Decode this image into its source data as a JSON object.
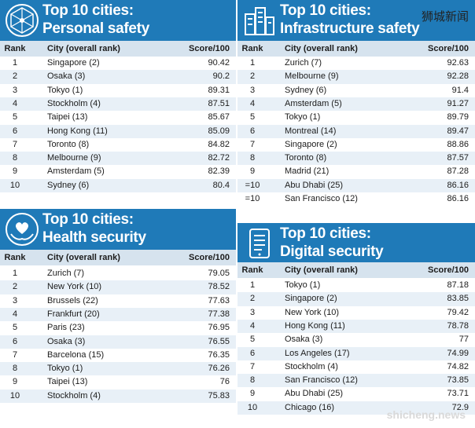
{
  "watermark_top": "狮城新闻",
  "watermark_bottom": "shicheng.news",
  "col_rank": "Rank",
  "col_city": "City (overall rank)",
  "col_score": "Score/100",
  "panels": {
    "personal": {
      "title1": "Top 10 cities:",
      "title2": "Personal safety",
      "icon": "network-icon",
      "rows": [
        {
          "rank": "1",
          "city": "Singapore (2)",
          "score": "90.42"
        },
        {
          "rank": "2",
          "city": "Osaka (3)",
          "score": "90.2"
        },
        {
          "rank": "3",
          "city": "Tokyo (1)",
          "score": "89.31"
        },
        {
          "rank": "4",
          "city": "Stockholm (4)",
          "score": "87.51"
        },
        {
          "rank": "5",
          "city": "Taipei (13)",
          "score": "85.67"
        },
        {
          "rank": "6",
          "city": "Hong Kong (11)",
          "score": "85.09"
        },
        {
          "rank": "7",
          "city": "Toronto (8)",
          "score": "84.82"
        },
        {
          "rank": "8",
          "city": "Melbourne (9)",
          "score": "82.72"
        },
        {
          "rank": "9",
          "city": "Amsterdam (5)",
          "score": "82.39"
        },
        {
          "rank": "10",
          "city": "Sydney (6)",
          "score": "80.4"
        }
      ]
    },
    "infra": {
      "title1": "Top 10 cities:",
      "title2": "Infrastructure safety",
      "icon": "buildings-icon",
      "rows": [
        {
          "rank": "1",
          "city": "Zurich (7)",
          "score": "92.63"
        },
        {
          "rank": "2",
          "city": "Melbourne (9)",
          "score": "92.28"
        },
        {
          "rank": "3",
          "city": "Sydney (6)",
          "score": "91.4"
        },
        {
          "rank": "4",
          "city": "Amsterdam (5)",
          "score": "91.27"
        },
        {
          "rank": "5",
          "city": "Tokyo (1)",
          "score": "89.79"
        },
        {
          "rank": "6",
          "city": "Montreal (14)",
          "score": "89.47"
        },
        {
          "rank": "7",
          "city": "Singapore (2)",
          "score": "88.86"
        },
        {
          "rank": "8",
          "city": "Toronto (8)",
          "score": "87.57"
        },
        {
          "rank": "9",
          "city": "Madrid (21)",
          "score": "87.28"
        },
        {
          "rank": "=10",
          "city": "Abu Dhabi (25)",
          "score": "86.16"
        },
        {
          "rank": "=10",
          "city": "San Francisco (12)",
          "score": "86.16"
        }
      ]
    },
    "health": {
      "title1": "Top 10 cities:",
      "title2": "Health security",
      "icon": "heart-hands-icon",
      "rows": [
        {
          "rank": "1",
          "city": "Zurich (7)",
          "score": "79.05"
        },
        {
          "rank": "2",
          "city": "New York (10)",
          "score": "78.52"
        },
        {
          "rank": "3",
          "city": "Brussels (22)",
          "score": "77.63"
        },
        {
          "rank": "4",
          "city": "Frankfurt (20)",
          "score": "77.38"
        },
        {
          "rank": "5",
          "city": "Paris (23)",
          "score": "76.95"
        },
        {
          "rank": "6",
          "city": "Osaka (3)",
          "score": "76.55"
        },
        {
          "rank": "7",
          "city": "Barcelona (15)",
          "score": "76.35"
        },
        {
          "rank": "8",
          "city": "Tokyo (1)",
          "score": "76.26"
        },
        {
          "rank": "9",
          "city": "Taipei (13)",
          "score": "76"
        },
        {
          "rank": "10",
          "city": "Stockholm (4)",
          "score": "75.83"
        }
      ]
    },
    "digital": {
      "title1": "Top 10 cities:",
      "title2": "Digital security",
      "icon": "tablet-icon",
      "rows": [
        {
          "rank": "1",
          "city": "Tokyo (1)",
          "score": "87.18"
        },
        {
          "rank": "2",
          "city": "Singapore (2)",
          "score": "83.85"
        },
        {
          "rank": "3",
          "city": "New York (10)",
          "score": "79.42"
        },
        {
          "rank": "4",
          "city": "Hong Kong (11)",
          "score": "78.78"
        },
        {
          "rank": "5",
          "city": "Osaka (3)",
          "score": "77"
        },
        {
          "rank": "6",
          "city": "Los Angeles (17)",
          "score": "74.99"
        },
        {
          "rank": "7",
          "city": "Stockholm (4)",
          "score": "74.82"
        },
        {
          "rank": "8",
          "city": "San Francisco (12)",
          "score": "73.85"
        },
        {
          "rank": "9",
          "city": "Abu Dhabi (25)",
          "score": "73.71"
        },
        {
          "rank": "10",
          "city": "Chicago (16)",
          "score": "72.9"
        }
      ]
    }
  }
}
